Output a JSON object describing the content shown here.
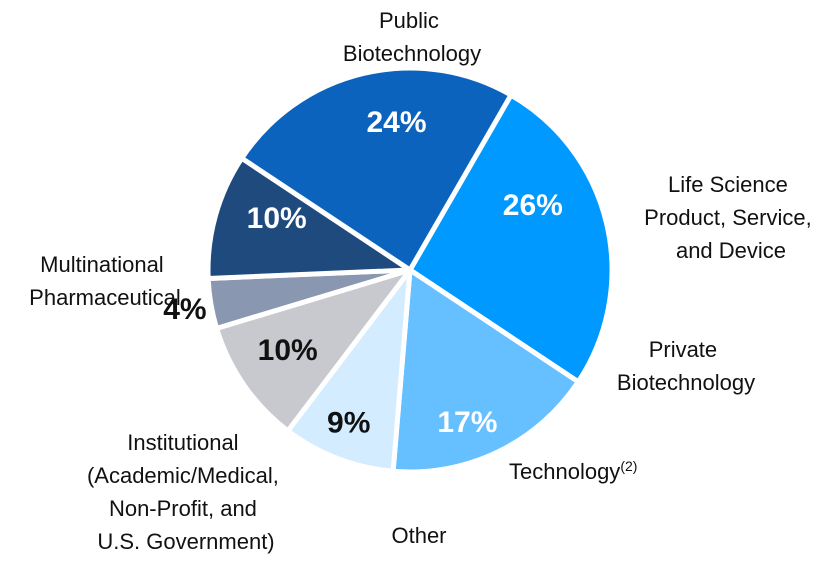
{
  "chart_data": {
    "type": "pie",
    "slices": [
      {
        "name": "Public Biotechnology",
        "value": 26,
        "label": "26%",
        "color": "#0099FF",
        "text_color": "#ffffff"
      },
      {
        "name": "Life Science Product, Service, and Device",
        "value": 17,
        "label": "17%",
        "color": "#66BFFF",
        "text_color": "#ffffff"
      },
      {
        "name": "Private Biotechnology",
        "value": 9,
        "label": "9%",
        "color": "#D3ECFF",
        "text_color": "#111111"
      },
      {
        "name": "Technology",
        "value": 10,
        "label": "10%",
        "color": "#C8C9CE",
        "text_color": "#111111"
      },
      {
        "name": "Other",
        "value": 4,
        "label": "4%",
        "color": "#8A97B0",
        "text_color": "#111111"
      },
      {
        "name": "Institutional (Academic/Medical, Non-Profit, and U.S. Government)",
        "value": 10,
        "label": "10%",
        "color": "#1F4A7E",
        "text_color": "#ffffff"
      },
      {
        "name": "Multinational Pharmaceutical",
        "value": 24,
        "label": "24%",
        "color": "#0B63BE",
        "text_color": "#ffffff"
      }
    ],
    "category_labels": {
      "public_biotech": [
        "Public",
        "Biotechnology"
      ],
      "life_science": [
        "Life Science",
        "Product, Service,",
        "and Device"
      ],
      "private_biotech": [
        "Private",
        "Biotechnology"
      ],
      "technology": "Technology",
      "technology_note": "(2)",
      "other": "Other",
      "institutional": [
        "Institutional",
        "(Academic/Medical,",
        "Non-Profit, and",
        "U.S. Government)"
      ],
      "multinational": [
        "Multinational",
        "Pharmaceutical"
      ]
    }
  }
}
